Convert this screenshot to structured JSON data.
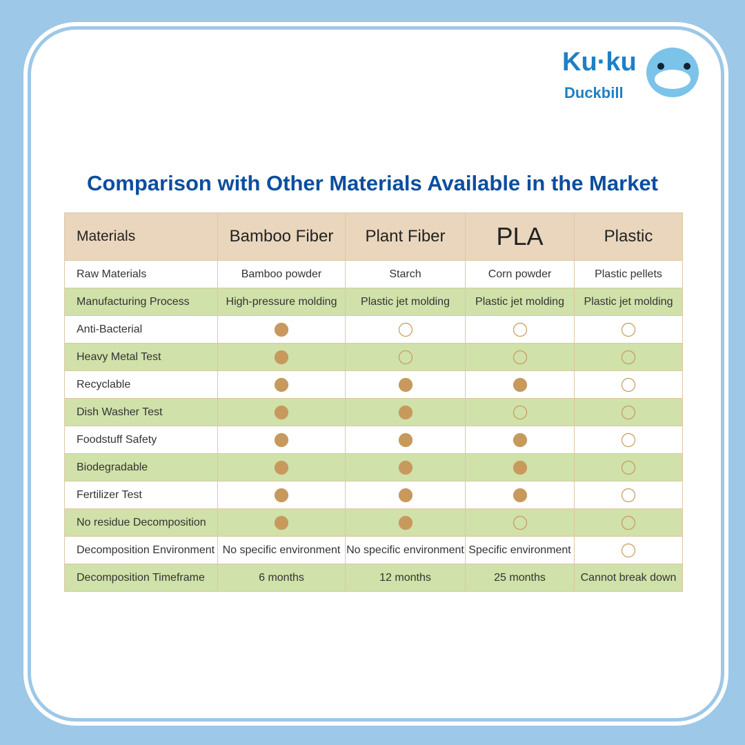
{
  "logo": {
    "brand": "Ku·ku",
    "sub": "Duckbill"
  },
  "title": "Comparison with Other Materials Available in the Market",
  "table": {
    "header": [
      "Materials",
      "Bamboo Fiber",
      "Plant Fiber",
      "PLA",
      "Plastic"
    ],
    "rows": [
      [
        "Raw Materials",
        "Bamboo powder",
        "Starch",
        "Corn powder",
        "Plastic pellets"
      ],
      [
        "Manufacturing Process",
        "High-pressure molding",
        "Plastic jet molding",
        "Plastic jet molding",
        "Plastic jet molding"
      ],
      [
        "Anti-Bacterial",
        true,
        false,
        false,
        false
      ],
      [
        "Heavy Metal Test",
        true,
        false,
        false,
        false
      ],
      [
        "Recyclable",
        true,
        true,
        true,
        false
      ],
      [
        "Dish Washer Test",
        true,
        true,
        false,
        false
      ],
      [
        "Foodstuff Safety",
        true,
        true,
        true,
        false
      ],
      [
        "Biodegradable",
        true,
        true,
        true,
        false
      ],
      [
        "Fertilizer Test",
        true,
        true,
        true,
        false
      ],
      [
        "No residue Decomposition",
        true,
        true,
        false,
        false
      ],
      [
        "Decomposition Environment",
        "No specific environment",
        "No specific environment",
        "Specific environment",
        false
      ],
      [
        "Decomposition Timeframe",
        "6 months",
        "12 months",
        "25 months",
        "Cannot break down"
      ]
    ]
  }
}
